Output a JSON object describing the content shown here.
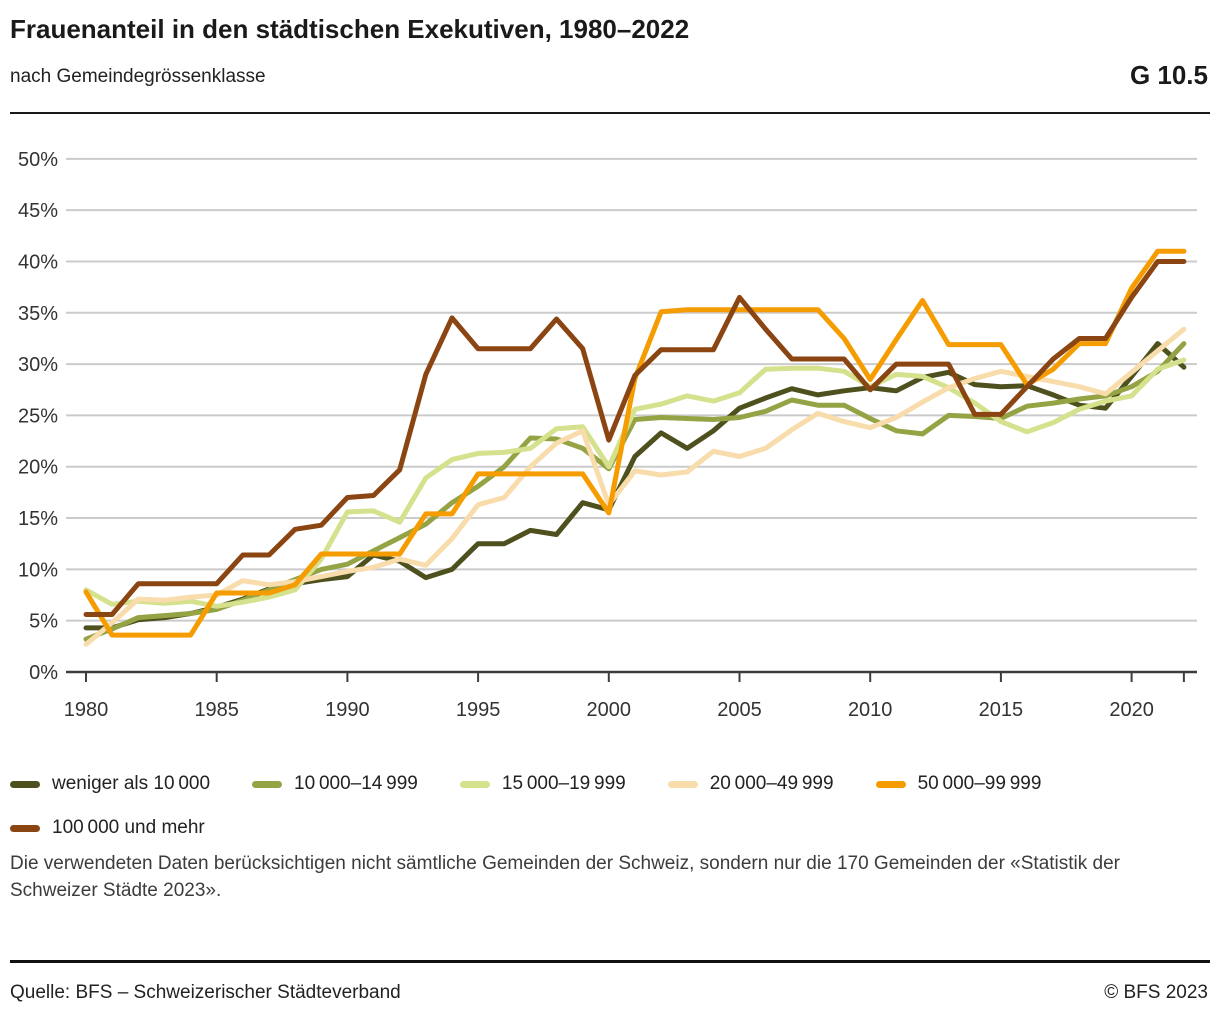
{
  "header": {
    "title": "Frauenanteil in den städtischen Exekutiven, 1980–2022",
    "subtitle": "nach Gemeindegrössenklasse",
    "graph_id": "G 10.5"
  },
  "note": {
    "text": "Die verwendeten Daten berücksichtigen nicht sämtliche Gemeinden der Schweiz, sondern nur die 170 Gemeinden der «Statistik der Schweizer Städte 2023»."
  },
  "footer": {
    "source": "Quelle: BFS – Schweizerischer Städteverband",
    "copyright": "© BFS 2023"
  },
  "chart_data": {
    "type": "line",
    "title": "Frauenanteil in den städtischen Exekutiven, 1980–2022",
    "xlabel": "",
    "ylabel": "",
    "x_start": 1980,
    "x_end": 2022,
    "xticks": [
      1980,
      1985,
      1990,
      1995,
      2000,
      2005,
      2010,
      2015,
      2020
    ],
    "ylim": [
      0,
      50
    ],
    "ytick_step": 5,
    "ytick_suffix": "%",
    "grid": "horizontal-gridlines",
    "legend_position": "bottom",
    "axis_color": "#3d3d3d",
    "grid_color": "#cbcbcb",
    "label_color": "#333333",
    "series": [
      {
        "name": "weniger als 10 000",
        "color": "#4e511d",
        "values": [
          4.3,
          4.3,
          5.1,
          5.3,
          5.7,
          6.3,
          7.1,
          8.1,
          8.6,
          9.0,
          9.3,
          11.4,
          10.8,
          9.2,
          10.0,
          12.5,
          12.5,
          13.8,
          13.4,
          16.5,
          15.8,
          21.0,
          23.3,
          21.8,
          23.5,
          25.7,
          26.7,
          27.6,
          27.0,
          27.4,
          27.7,
          27.4,
          28.7,
          29.2,
          28.0,
          27.8,
          27.9,
          27.0,
          26.0,
          25.7,
          28.8,
          32.0,
          29.7
        ]
      },
      {
        "name": "10 000–14 999",
        "color": "#95a345",
        "values": [
          3.2,
          4.2,
          5.3,
          5.5,
          5.7,
          6.1,
          7.0,
          8.0,
          9.0,
          10.0,
          10.5,
          11.8,
          13.1,
          14.4,
          16.5,
          18.1,
          20.0,
          22.8,
          22.7,
          21.8,
          19.8,
          24.6,
          24.8,
          24.7,
          24.6,
          24.8,
          25.4,
          26.5,
          26.0,
          26.0,
          24.7,
          23.5,
          23.2,
          25.0,
          24.9,
          24.7,
          25.9,
          26.2,
          26.6,
          26.9,
          27.8,
          29.3,
          32.0
        ]
      },
      {
        "name": "15 000–19 999",
        "color": "#d5e18c",
        "values": [
          8.0,
          6.6,
          6.9,
          6.7,
          6.9,
          6.4,
          6.8,
          7.3,
          8.0,
          11.0,
          15.6,
          15.7,
          14.6,
          18.9,
          20.7,
          21.3,
          21.4,
          21.8,
          23.7,
          23.9,
          20.0,
          25.6,
          26.1,
          26.9,
          26.4,
          27.2,
          29.5,
          29.6,
          29.6,
          29.3,
          27.8,
          29.0,
          28.8,
          27.7,
          26.2,
          24.4,
          23.4,
          24.3,
          25.6,
          26.4,
          26.9,
          29.5,
          30.4
        ]
      },
      {
        "name": "20 000–49 999",
        "color": "#f8dcab",
        "values": [
          2.7,
          4.8,
          7.1,
          7.0,
          7.3,
          7.5,
          8.9,
          8.5,
          8.8,
          9.3,
          9.8,
          10.2,
          11.0,
          10.4,
          13.0,
          16.3,
          17.0,
          20.0,
          22.3,
          23.5,
          16.3,
          19.6,
          19.2,
          19.5,
          21.5,
          21.0,
          21.8,
          23.6,
          25.2,
          24.4,
          23.8,
          24.8,
          26.3,
          27.7,
          28.6,
          29.3,
          28.8,
          28.3,
          27.8,
          27.1,
          29.2,
          31.3,
          33.4
        ]
      },
      {
        "name": "50 000–99 999",
        "color": "#f59c00",
        "values": [
          7.8,
          3.6,
          3.6,
          3.6,
          3.6,
          7.7,
          7.7,
          7.7,
          8.5,
          11.5,
          11.5,
          11.5,
          11.5,
          15.4,
          15.4,
          19.3,
          19.3,
          19.3,
          19.3,
          19.3,
          15.5,
          28.6,
          35.1,
          35.3,
          35.3,
          35.3,
          35.3,
          35.3,
          35.3,
          32.5,
          28.5,
          32.4,
          36.2,
          31.9,
          31.9,
          31.9,
          28.0,
          29.5,
          32.0,
          32.0,
          37.4,
          41.0,
          41.0
        ]
      },
      {
        "name": "100 000 und mehr",
        "color": "#8a4512",
        "values": [
          5.6,
          5.6,
          8.6,
          8.6,
          8.6,
          8.6,
          11.4,
          11.4,
          13.9,
          14.3,
          17.0,
          17.2,
          19.7,
          29.0,
          34.5,
          31.5,
          31.5,
          31.5,
          34.4,
          31.5,
          22.6,
          28.9,
          31.4,
          31.4,
          31.4,
          36.5,
          33.4,
          30.5,
          30.5,
          30.5,
          27.5,
          30.0,
          30.0,
          30.0,
          25.1,
          25.1,
          27.8,
          30.5,
          32.5,
          32.5,
          36.5,
          40.0,
          40.0
        ]
      }
    ]
  }
}
